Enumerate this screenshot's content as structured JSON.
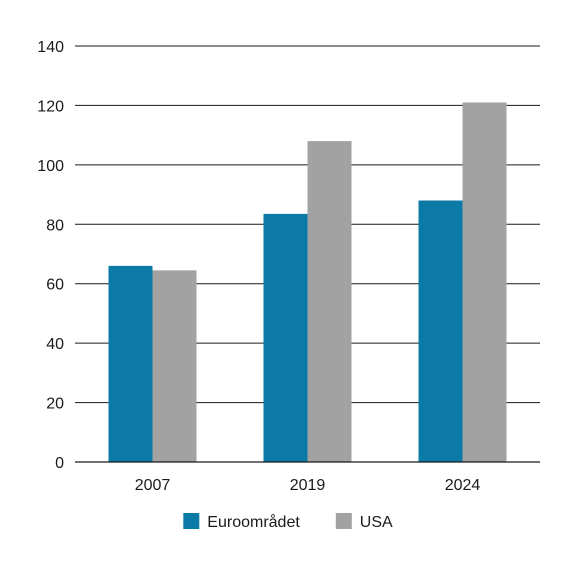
{
  "chart_data": {
    "type": "bar",
    "title": "",
    "xlabel": "",
    "ylabel": "",
    "categories": [
      "2007",
      "2019",
      "2024"
    ],
    "series": [
      {
        "name": "Euroområdet",
        "color": "#0b7aa6",
        "values": [
          66,
          83.5,
          88
        ]
      },
      {
        "name": "USA",
        "color": "#a2a2a2",
        "values": [
          64.5,
          108,
          121
        ]
      }
    ],
    "ylim": [
      0,
      140
    ],
    "yticks": [
      0,
      20,
      40,
      60,
      80,
      100,
      120,
      140
    ],
    "grid": true,
    "legend_position": "bottom-center"
  }
}
